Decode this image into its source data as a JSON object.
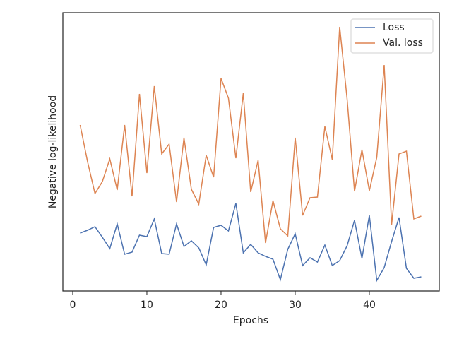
{
  "chart_data": {
    "type": "line",
    "xlabel": "Epochs",
    "ylabel": "Negative log-likelihood",
    "x": [
      1,
      2,
      3,
      4,
      5,
      6,
      7,
      8,
      9,
      10,
      11,
      12,
      13,
      14,
      15,
      16,
      17,
      18,
      19,
      20,
      21,
      22,
      23,
      24,
      25,
      26,
      27,
      28,
      29,
      30,
      31,
      32,
      33,
      34,
      35,
      36,
      37,
      38,
      39,
      40,
      41,
      42,
      43,
      44,
      45,
      46,
      47
    ],
    "series": [
      {
        "name": "Loss",
        "color": "#4c72b0",
        "values": [
          82,
          86,
          91,
          76,
          60,
          95,
          52,
          55,
          79,
          77,
          102,
          53,
          52,
          95,
          63,
          71,
          61,
          37,
          90,
          93,
          85,
          124,
          54,
          66,
          54,
          49,
          45,
          16,
          59,
          81,
          36,
          47,
          41,
          65,
          36,
          43,
          64,
          100,
          46,
          107,
          15,
          33,
          70,
          104,
          32,
          18,
          20
        ]
      },
      {
        "name": "Val. loss",
        "color": "#dd8452",
        "values": [
          235,
          183,
          138,
          155,
          187,
          143,
          235,
          134,
          279,
          167,
          290,
          194,
          208,
          126,
          217,
          144,
          123,
          192,
          161,
          301,
          273,
          188,
          280,
          140,
          185,
          68,
          128,
          88,
          78,
          217,
          107,
          132,
          133,
          233,
          186,
          374,
          272,
          141,
          200,
          142,
          189,
          320,
          94,
          194,
          198,
          102,
          106
        ]
      }
    ],
    "xlim": [
      -1.33,
      49.43
    ],
    "xticks": [
      0,
      10,
      20,
      30,
      40
    ],
    "ylim": [
      0,
      394
    ],
    "yticks": [],
    "legend": "upper right"
  }
}
